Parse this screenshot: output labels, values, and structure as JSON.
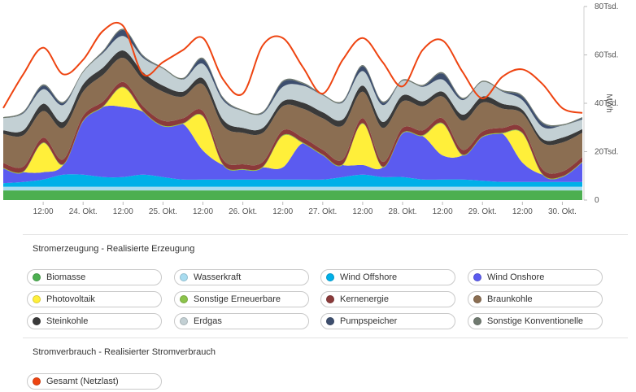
{
  "chart_data": {
    "type": "area",
    "stacked": true,
    "x_ticks": [
      "12:00",
      "24. Okt.",
      "12:00",
      "25. Okt.",
      "12:00",
      "26. Okt.",
      "12:00",
      "27. Okt.",
      "12:00",
      "28. Okt.",
      "12:00",
      "29. Okt.",
      "12:00",
      "30. Okt."
    ],
    "y_ticks": [
      "0",
      "20Tsd.",
      "40Tsd.",
      "60Tsd.",
      "80Tsd."
    ],
    "ylabel": "MWh",
    "ylim": [
      0,
      80000
    ],
    "x_hours": [
      0,
      6,
      12,
      18,
      24,
      30,
      36,
      42,
      48,
      54,
      60,
      66,
      72,
      78,
      84,
      90,
      96,
      102,
      108,
      114,
      120,
      126,
      132,
      138,
      144,
      150,
      156,
      162,
      168,
      174
    ],
    "series": [
      {
        "name": "Biomasse",
        "color": "#4caf50",
        "values": [
          4000,
          4000,
          4000,
          4000,
          4000,
          4000,
          4000,
          4000,
          4000,
          4000,
          4000,
          4000,
          4000,
          4000,
          4000,
          4000,
          4000,
          4000,
          4000,
          4000,
          4000,
          4000,
          4000,
          4000,
          4000,
          4000,
          4000,
          4000,
          4000,
          4000
        ]
      },
      {
        "name": "Wasserkraft",
        "color": "#a8dcf0",
        "values": [
          1500,
          1500,
          1500,
          1500,
          1500,
          1500,
          1500,
          1500,
          1500,
          1500,
          1500,
          1500,
          1500,
          1500,
          1500,
          1500,
          1500,
          1500,
          1500,
          1500,
          1500,
          1500,
          1500,
          1500,
          1500,
          1500,
          1500,
          1500,
          1500,
          1500
        ]
      },
      {
        "name": "Wind Offshore",
        "color": "#00b0e8",
        "values": [
          1500,
          2000,
          3000,
          5000,
          5000,
          4000,
          4000,
          5000,
          4000,
          3000,
          3000,
          3000,
          3000,
          3000,
          3000,
          3000,
          3000,
          4000,
          5000,
          4000,
          4000,
          3000,
          3000,
          3000,
          2500,
          2000,
          2000,
          2000,
          2000,
          2000
        ]
      },
      {
        "name": "Wind Onshore",
        "color": "#5b5bf0",
        "values": [
          6000,
          4000,
          3000,
          4000,
          22000,
          29000,
          29000,
          26000,
          21000,
          23000,
          12000,
          6000,
          4000,
          5000,
          5000,
          15000,
          10000,
          5000,
          4000,
          4000,
          18000,
          18000,
          10000,
          10000,
          18000,
          20000,
          8000,
          3000,
          2000,
          8000
        ]
      },
      {
        "name": "Photovoltaik",
        "color": "#ffef3a",
        "values": [
          0,
          0,
          12000,
          0,
          0,
          0,
          8000,
          0,
          0,
          0,
          14000,
          0,
          0,
          0,
          13000,
          0,
          0,
          0,
          17000,
          0,
          0,
          0,
          13000,
          0,
          0,
          0,
          12000,
          0,
          0,
          0
        ]
      },
      {
        "name": "Sonstige Erneuerbare",
        "color": "#8bc34a",
        "values": [
          300,
          300,
          300,
          300,
          300,
          300,
          300,
          300,
          300,
          300,
          300,
          300,
          300,
          300,
          300,
          300,
          300,
          300,
          300,
          300,
          300,
          300,
          300,
          300,
          300,
          300,
          300,
          300,
          300,
          300
        ]
      },
      {
        "name": "Kernenergie",
        "color": "#8b3a3a",
        "values": [
          2000,
          2000,
          2000,
          2000,
          2000,
          2000,
          2000,
          2000,
          2000,
          2000,
          2000,
          2000,
          2000,
          2000,
          2000,
          2000,
          2000,
          2000,
          2000,
          2000,
          2000,
          2000,
          2000,
          2000,
          2000,
          2000,
          2000,
          2000,
          2000,
          2000
        ]
      },
      {
        "name": "Braunkohle",
        "color": "#8b6e52",
        "values": [
          12000,
          13000,
          11000,
          13000,
          10000,
          11000,
          10000,
          11000,
          12000,
          9000,
          11000,
          14000,
          13000,
          12000,
          10000,
          12000,
          13000,
          14000,
          11000,
          14000,
          11000,
          10000,
          9000,
          12000,
          12000,
          8000,
          6000,
          11000,
          12000,
          10000
        ]
      },
      {
        "name": "Steinkohle",
        "color": "#3a3a3a",
        "values": [
          1500,
          2000,
          3000,
          2500,
          3000,
          3000,
          3000,
          3000,
          2500,
          2000,
          2500,
          2500,
          2000,
          2000,
          2000,
          2500,
          2500,
          2500,
          2500,
          2500,
          2500,
          2000,
          2000,
          2500,
          2500,
          2000,
          1500,
          1500,
          2000,
          1500
        ]
      },
      {
        "name": "Erdgas",
        "color": "#c3d0d4",
        "values": [
          5000,
          7000,
          6000,
          7000,
          5000,
          6000,
          6000,
          6000,
          7000,
          5000,
          6000,
          8000,
          7000,
          6000,
          6000,
          7000,
          7000,
          7000,
          6000,
          7000,
          6000,
          6000,
          5000,
          6000,
          6000,
          5000,
          4000,
          5000,
          5000,
          4000
        ]
      },
      {
        "name": "Pumpspeicher",
        "color": "#3d4e6e",
        "values": [
          0,
          300,
          1500,
          800,
          0,
          500,
          2500,
          600,
          0,
          200,
          2000,
          800,
          0,
          300,
          2000,
          800,
          0,
          300,
          2000,
          1000,
          0,
          300,
          2500,
          500,
          0,
          200,
          1500,
          1500,
          0,
          500
        ]
      },
      {
        "name": "Sonstige Konventionelle",
        "color": "#707a70",
        "values": [
          500,
          500,
          500,
          500,
          500,
          500,
          500,
          500,
          500,
          500,
          500,
          500,
          500,
          500,
          500,
          500,
          500,
          500,
          500,
          500,
          500,
          500,
          500,
          500,
          500,
          500,
          500,
          500,
          500,
          500
        ]
      }
    ],
    "load": {
      "name": "Gesamt (Netzlast)",
      "color": "#ee4411",
      "values": [
        38000,
        52000,
        63000,
        52000,
        58000,
        70000,
        72000,
        52000,
        57000,
        62000,
        67000,
        50000,
        44000,
        64000,
        67000,
        55000,
        44000,
        58000,
        67000,
        57000,
        47000,
        62000,
        66000,
        53000,
        42000,
        51000,
        54000,
        48000,
        38000,
        36000
      ]
    }
  },
  "legend_sections": [
    {
      "title": "Stromerzeugung - Realisierte Erzeugung",
      "items": [
        {
          "label": "Biomasse",
          "color": "#4caf50"
        },
        {
          "label": "Wasserkraft",
          "color": "#a8dcf0"
        },
        {
          "label": "Wind Offshore",
          "color": "#00b0e8"
        },
        {
          "label": "Wind Onshore",
          "color": "#5b5bf0"
        },
        {
          "label": "Photovoltaik",
          "color": "#ffef3a"
        },
        {
          "label": "Sonstige Erneuerbare",
          "color": "#8bc34a"
        },
        {
          "label": "Kernenergie",
          "color": "#8b3a3a"
        },
        {
          "label": "Braunkohle",
          "color": "#8b6e52"
        },
        {
          "label": "Steinkohle",
          "color": "#3a3a3a"
        },
        {
          "label": "Erdgas",
          "color": "#c3d0d4"
        },
        {
          "label": "Pumpspeicher",
          "color": "#3d4e6e"
        },
        {
          "label": "Sonstige Konventionelle",
          "color": "#707a70"
        }
      ]
    },
    {
      "title": "Stromverbrauch - Realisierter Stromverbrauch",
      "items": [
        {
          "label": "Gesamt (Netzlast)",
          "color": "#ee4411"
        }
      ]
    }
  ]
}
